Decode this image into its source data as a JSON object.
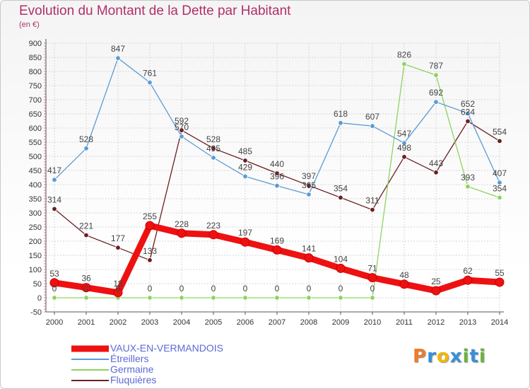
{
  "header": {
    "title": "Evolution du Montant de la Dette par Habitant",
    "subtitle": "(en €)"
  },
  "logo": {
    "text": "Proxiti",
    "colors": [
      "#f07b2a",
      "#3a8fd8",
      "#f2b705",
      "#3a8fd8",
      "#6cb33f",
      "#3a8fd8",
      "#6cb33f"
    ]
  },
  "chart_data": {
    "type": "line",
    "title": "Evolution du Montant de la Dette par Habitant",
    "subtitle": "(en €)",
    "x": [
      "2000",
      "2001",
      "2002",
      "2003",
      "2004",
      "2005",
      "2006",
      "2007",
      "2008",
      "2009",
      "2010",
      "2011",
      "2012",
      "2013",
      "2014"
    ],
    "ylim": [
      -50,
      900
    ],
    "yticks": [
      -50,
      0,
      50,
      100,
      150,
      200,
      250,
      300,
      350,
      400,
      450,
      500,
      550,
      600,
      650,
      700,
      750,
      800,
      850,
      900
    ],
    "grid": true,
    "legend_position": "bottom-left",
    "series": [
      {
        "name": "VAUX-EN-VERMANDOIS",
        "color": "#ee1111",
        "thick": true,
        "values": [
          53,
          36,
          18,
          255,
          228,
          223,
          197,
          169,
          141,
          104,
          71,
          48,
          25,
          62,
          55
        ],
        "labels": [
          "53",
          "36",
          "18",
          "255",
          "228",
          "223",
          "197",
          "169",
          "141",
          "104",
          "71",
          "48",
          "25",
          "62",
          "55"
        ]
      },
      {
        "name": "Étreillers",
        "color": "#5b9bd5",
        "thick": false,
        "values": [
          417,
          528,
          847,
          761,
          570,
          495,
          429,
          396,
          365,
          618,
          607,
          547,
          692,
          652,
          407
        ],
        "labels": [
          "417",
          "528",
          "847",
          "761",
          "570",
          "495",
          "429",
          "396",
          "365",
          "618",
          "607",
          "547",
          "692",
          "652",
          "407"
        ]
      },
      {
        "name": "Germaine",
        "color": "#8dd35f",
        "thick": false,
        "values": [
          0,
          0,
          0,
          0,
          0,
          0,
          0,
          0,
          0,
          0,
          0,
          826,
          787,
          393,
          354
        ],
        "labels": [
          "0",
          "0",
          "0",
          "0",
          "0",
          "0",
          "0",
          "0",
          "0",
          "0",
          "0",
          "826",
          "787",
          "393",
          "354"
        ]
      },
      {
        "name": "Fluquières",
        "color": "#6b1f23",
        "thick": false,
        "values": [
          314,
          221,
          177,
          133,
          592,
          528,
          485,
          440,
          397,
          354,
          311,
          498,
          443,
          624,
          554
        ],
        "labels": [
          "314",
          "221",
          "177",
          "133",
          "592",
          "528",
          "485",
          "440",
          "397",
          "354",
          "311",
          "498",
          "443",
          "624",
          "554"
        ]
      }
    ]
  }
}
